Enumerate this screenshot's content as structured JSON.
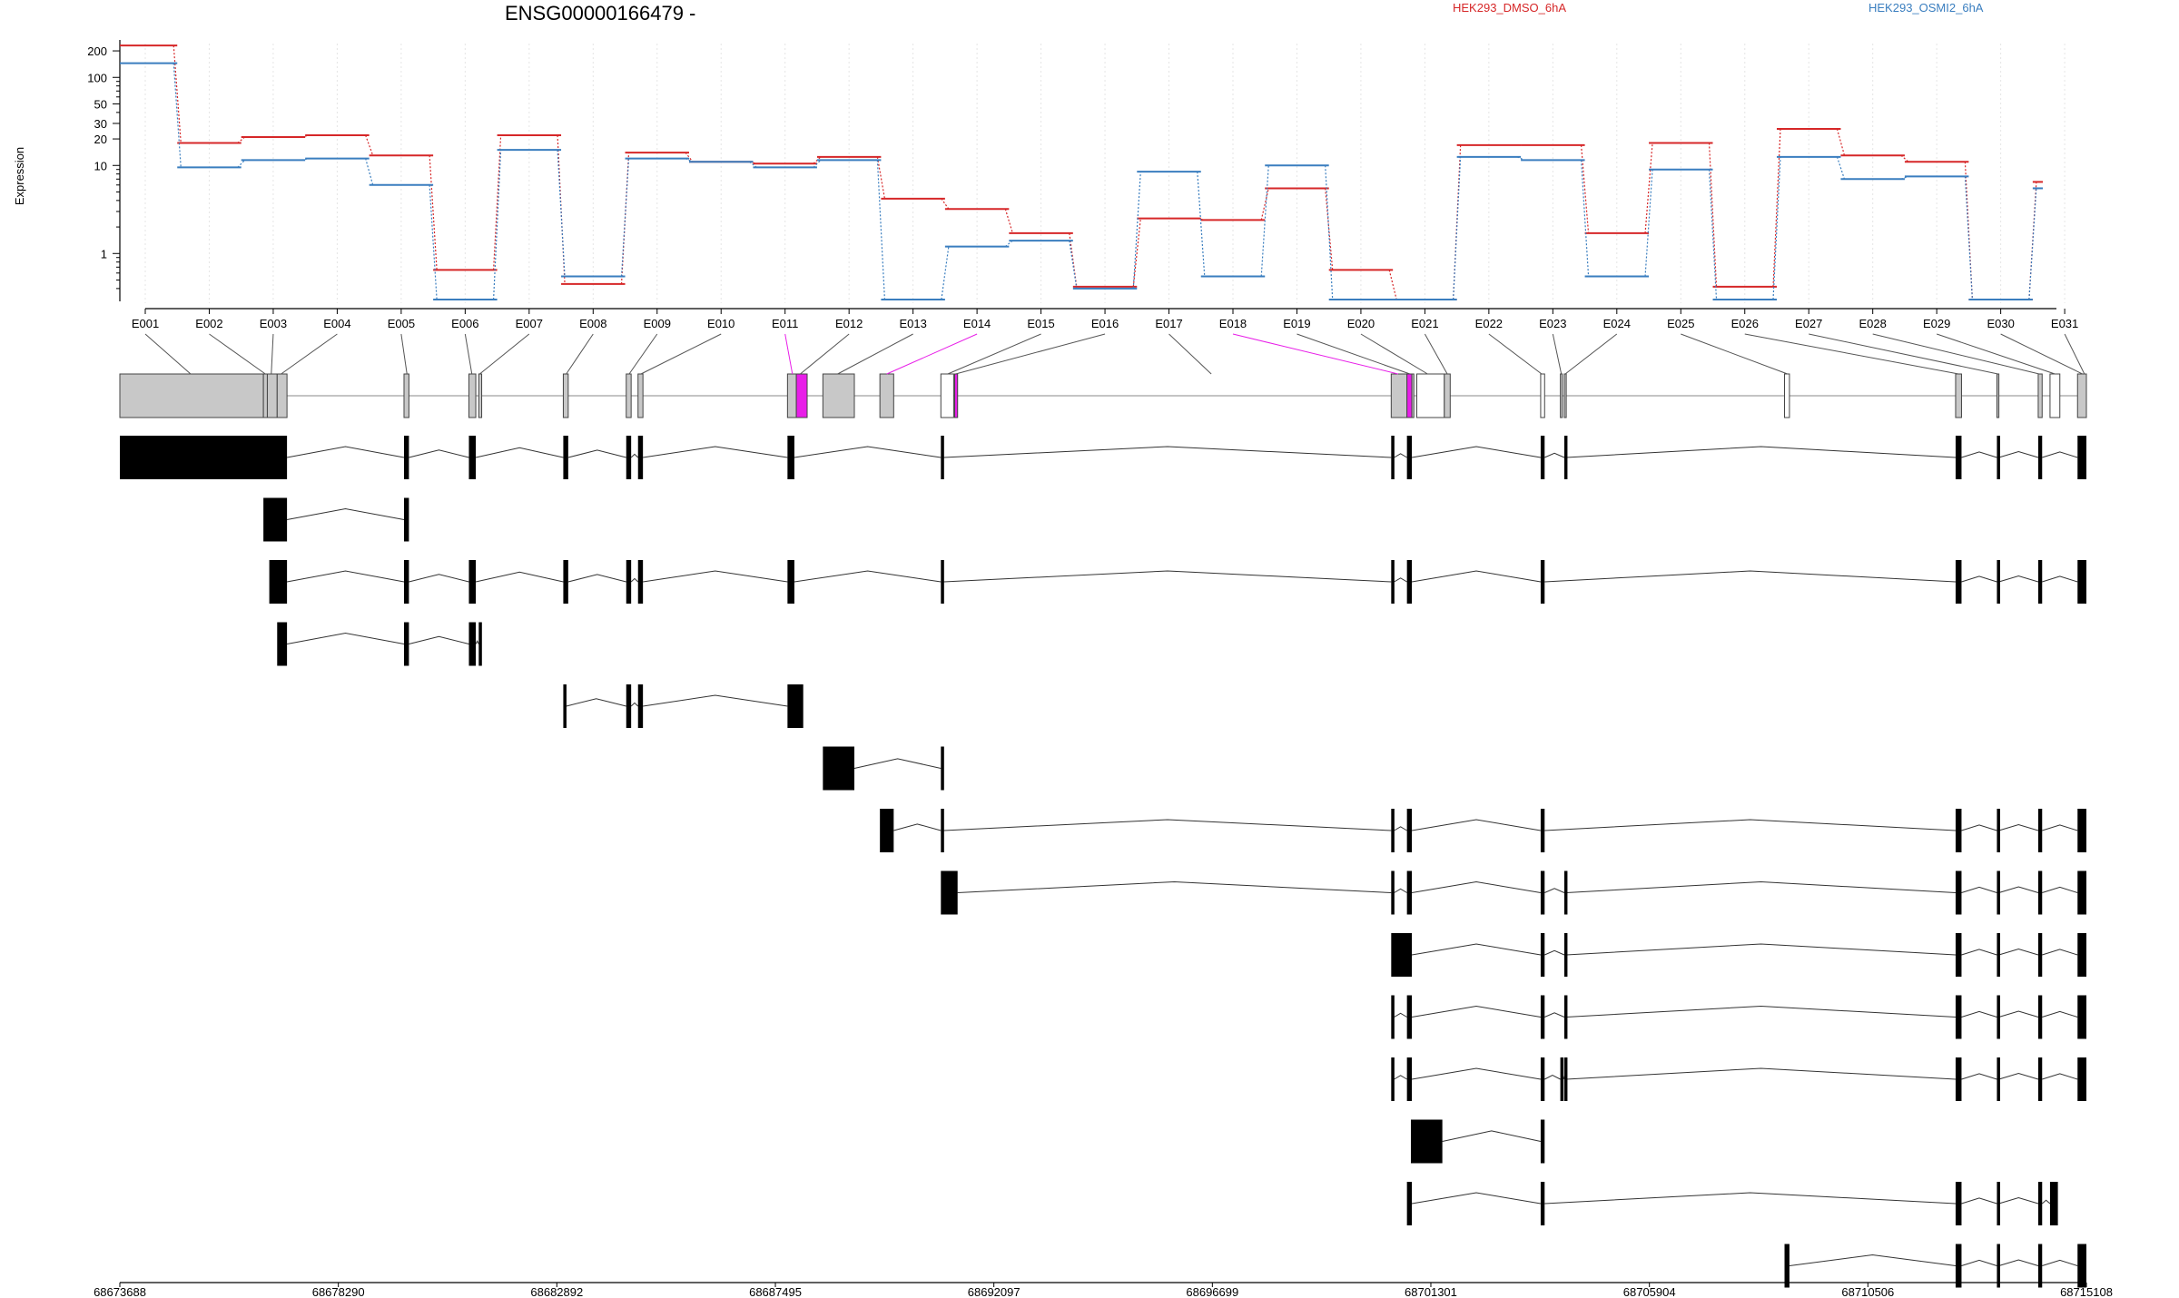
{
  "chart_data": {
    "type": "line",
    "title": "ENSG00000166479 -",
    "ylabel": "Expression",
    "yscale": "log",
    "ylim": [
      0.3,
      260
    ],
    "ytick_labels": [
      "200",
      "100",
      "50",
      "30",
      "20",
      "10",
      "1"
    ],
    "ytick_values": [
      200,
      100,
      50,
      30,
      20,
      10,
      1
    ],
    "grid": "vertical dotted lines at exon centers",
    "legend": "top-right",
    "categories": [
      "E001",
      "E002",
      "E003",
      "E004",
      "E005",
      "E006",
      "E007",
      "E008",
      "E009",
      "E010",
      "E011",
      "E012",
      "E013",
      "E014",
      "E015",
      "E016",
      "E017",
      "E018",
      "E019",
      "E020",
      "E021",
      "E022",
      "E023",
      "E024",
      "E025",
      "E026",
      "E027",
      "E028",
      "E029",
      "E030",
      "E031"
    ],
    "series": [
      {
        "name": "HEK293_DMSO_6hA",
        "color": "#d62728",
        "values": [
          230,
          18,
          21,
          22,
          13,
          0.65,
          22,
          0.45,
          14,
          11,
          10.5,
          12.5,
          4.2,
          3.2,
          1.7,
          0.42,
          2.5,
          2.4,
          5.5,
          0.65,
          0.3,
          17,
          17,
          1.7,
          18,
          0.42,
          26,
          13,
          11,
          0.3,
          6.5
        ]
      },
      {
        "name": "HEK293_OSMI2_6hA",
        "color": "#3a7ebf",
        "values": [
          145,
          9.5,
          11.5,
          12,
          6,
          0.3,
          15,
          0.55,
          12,
          11,
          9.5,
          11.5,
          0.3,
          1.2,
          1.4,
          0.4,
          8.5,
          0.55,
          10,
          0.3,
          0.3,
          12.5,
          11.5,
          0.55,
          9,
          0.3,
          12.5,
          7,
          7.5,
          0.3,
          5.5
        ]
      }
    ],
    "genomic_axis": {
      "tick_labels": [
        "68673688",
        "68678290",
        "68682892",
        "68687495",
        "68692097",
        "68696699",
        "68701301",
        "68705904",
        "68710506",
        "68715108"
      ],
      "range": [
        68673688,
        68715108
      ]
    },
    "highlight_color": "#e81ee8",
    "highlighted_exons": [
      "E011",
      "E014",
      "E018"
    ],
    "exon_colors": {
      "grey": "#c8c8c8",
      "white": "#ffffff",
      "black": "#000000"
    }
  }
}
